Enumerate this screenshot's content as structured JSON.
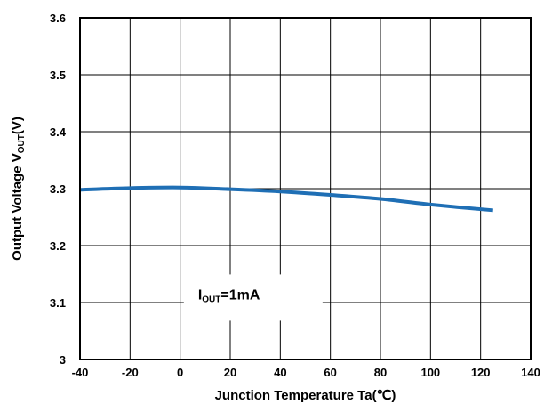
{
  "chart_data": {
    "type": "line",
    "title": "",
    "xlabel": "Junction Temperature Ta(℃)",
    "ylabel": {
      "main": "Output Voltage V",
      "sub": "OUT",
      "suffix": "(V)"
    },
    "xlim": [
      -40,
      140
    ],
    "ylim": [
      3.0,
      3.6
    ],
    "xticks": [
      -40,
      -20,
      0,
      20,
      40,
      60,
      80,
      100,
      120,
      140
    ],
    "yticks": [
      3,
      3.1,
      3.2,
      3.3,
      3.4,
      3.5,
      3.6
    ],
    "ytick_labels": [
      "3",
      "3.1",
      "3.2",
      "3.3",
      "3.4",
      "3.5",
      "3.6"
    ],
    "grid": true,
    "series": [
      {
        "color": "#1f6fb5",
        "x": [
          -40,
          -20,
          0,
          20,
          40,
          60,
          80,
          100,
          125
        ],
        "y": [
          3.298,
          3.301,
          3.302,
          3.299,
          3.295,
          3.289,
          3.282,
          3.272,
          3.262
        ]
      }
    ],
    "annotation": {
      "main": "I",
      "sub": "OUT",
      "suffix": "=1mA",
      "x": 10,
      "y": 3.115
    }
  }
}
